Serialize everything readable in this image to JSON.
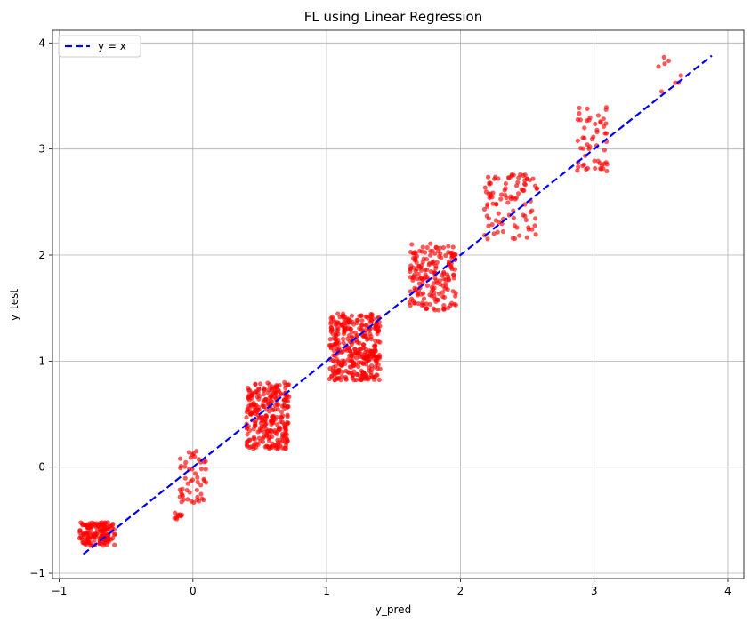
{
  "chart_data": {
    "type": "scatter",
    "title": "FL using Linear Regression",
    "xlabel": "y_pred",
    "ylabel": "y_test",
    "xlim": [
      -1.05,
      4.12
    ],
    "ylim": [
      -1.05,
      4.12
    ],
    "xticks": [
      -1,
      0,
      1,
      2,
      3,
      4
    ],
    "yticks": [
      -1,
      0,
      1,
      2,
      3,
      4
    ],
    "grid": true,
    "legend_position": "top-left",
    "reference_line": {
      "name": "y = x",
      "color": "#0000ff",
      "style": "dashed",
      "x": [
        -0.82,
        3.88
      ],
      "y": [
        -0.82,
        3.88
      ]
    },
    "scatter_color": "#ff0000",
    "clusters": [
      {
        "x_range": [
          -0.85,
          -0.58
        ],
        "y_range": [
          -0.74,
          -0.52
        ],
        "count": 150
      },
      {
        "x_range": [
          -0.14,
          -0.08
        ],
        "y_range": [
          -0.49,
          -0.43
        ],
        "count": 10
      },
      {
        "x_range": [
          -0.1,
          0.1
        ],
        "y_range": [
          -0.35,
          0.16
        ],
        "count": 50
      },
      {
        "x_range": [
          0.4,
          0.72
        ],
        "y_range": [
          0.17,
          0.8
        ],
        "count": 280
      },
      {
        "x_range": [
          1.02,
          1.4
        ],
        "y_range": [
          0.82,
          1.45
        ],
        "count": 350
      },
      {
        "x_range": [
          1.62,
          1.97
        ],
        "y_range": [
          1.47,
          2.11
        ],
        "count": 180
      },
      {
        "x_range": [
          2.18,
          2.58
        ],
        "y_range": [
          2.15,
          2.76
        ],
        "count": 95
      },
      {
        "x_range": [
          2.86,
          3.1
        ],
        "y_range": [
          2.79,
          3.4
        ],
        "count": 55
      },
      {
        "x_range": [
          3.48,
          3.66
        ],
        "y_range": [
          3.5,
          3.88
        ],
        "count": 8
      }
    ]
  }
}
